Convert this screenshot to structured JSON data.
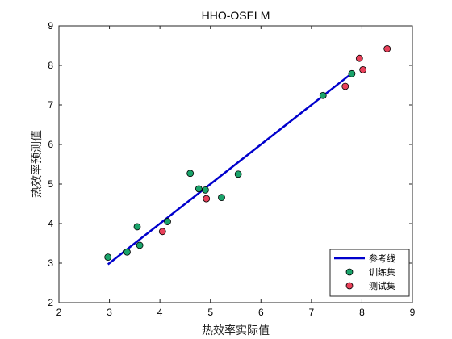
{
  "chart_data": {
    "type": "scatter",
    "title": "HHO-OSELM",
    "xlabel": "热效率实际值",
    "ylabel": "热效率预测值",
    "xlim": [
      2,
      9
    ],
    "ylim": [
      2,
      9
    ],
    "xticks": [
      2,
      3,
      4,
      5,
      6,
      7,
      8,
      9
    ],
    "yticks": [
      2,
      3,
      4,
      5,
      6,
      7,
      8,
      9
    ],
    "grid": false,
    "legend_position": "bottom-right",
    "reference_line": {
      "name": "参考线",
      "color": "#0000cc",
      "x": [
        2.97,
        7.8
      ],
      "y": [
        2.97,
        7.8
      ]
    },
    "series": [
      {
        "name": "训练集",
        "color": "#1aa36a",
        "x": [
          2.97,
          3.35,
          3.55,
          3.6,
          4.15,
          4.6,
          4.77,
          4.9,
          5.22,
          5.55,
          7.23,
          7.8
        ],
        "y": [
          3.15,
          3.28,
          3.92,
          3.45,
          4.05,
          5.27,
          4.88,
          4.85,
          4.66,
          5.25,
          7.24,
          7.79
        ]
      },
      {
        "name": "测试集",
        "color": "#e8415a",
        "x": [
          4.05,
          4.92,
          7.67,
          7.95,
          8.02,
          8.5
        ],
        "y": [
          3.8,
          4.63,
          7.47,
          8.18,
          7.89,
          8.42
        ]
      }
    ]
  }
}
